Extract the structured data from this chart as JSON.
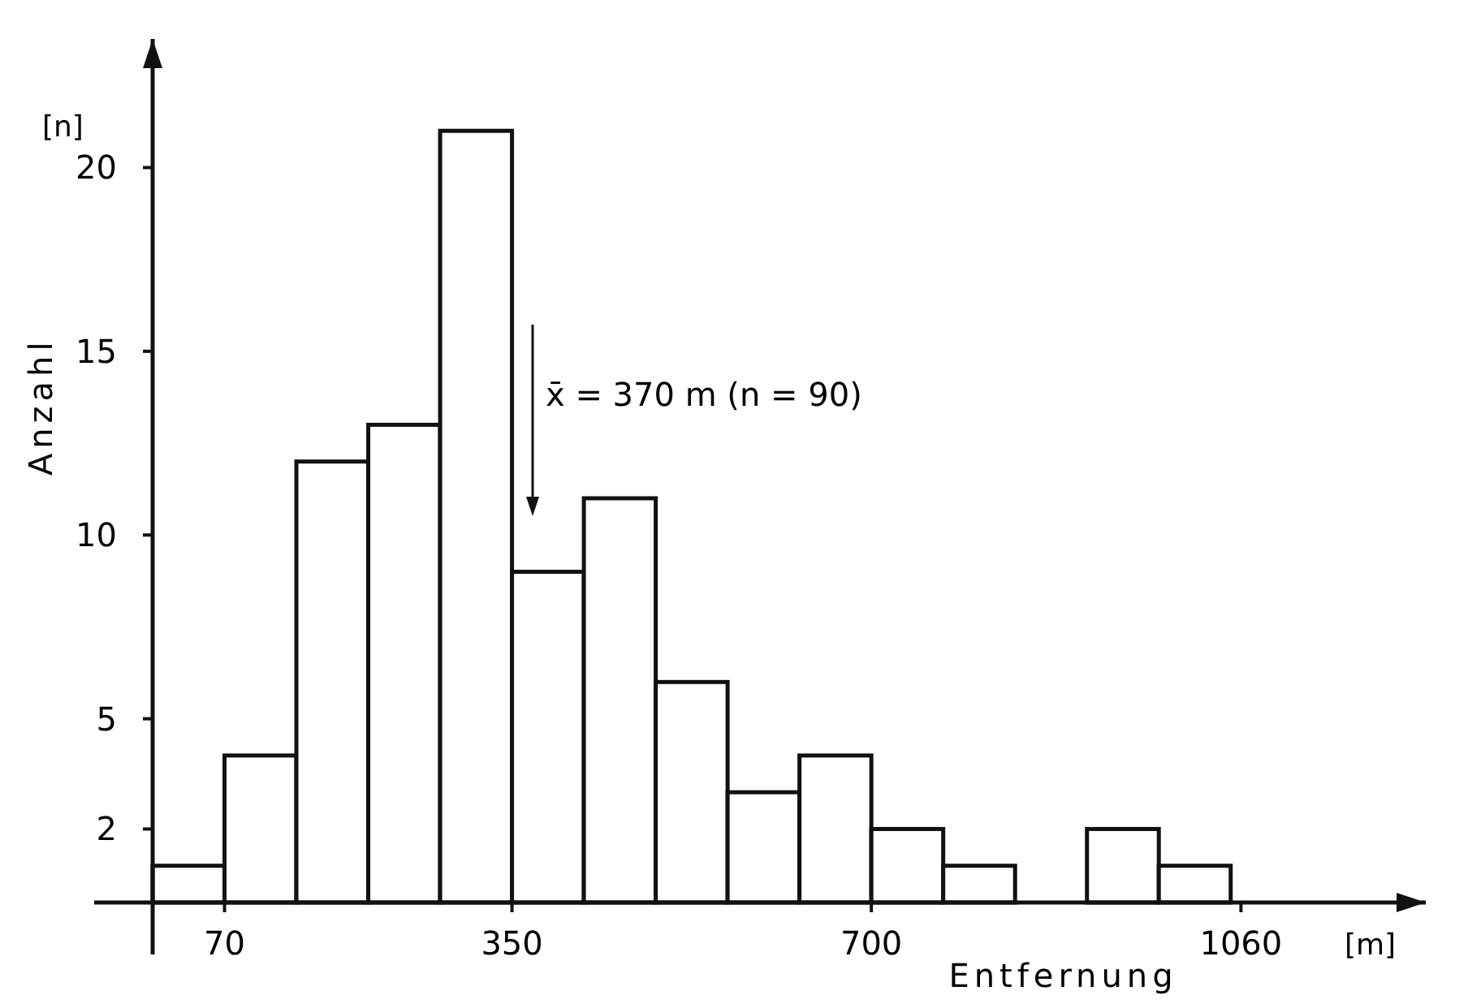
{
  "chart_data": {
    "type": "histogram",
    "ylabel": "Anzahl",
    "xlabel": "Entfernung",
    "bins": [
      0,
      70,
      140,
      210,
      280,
      350,
      420,
      490,
      560,
      630,
      700,
      770,
      840,
      910,
      980,
      1050
    ],
    "values": [
      1,
      4,
      12,
      13,
      21,
      9,
      11,
      6,
      3,
      4,
      2,
      1,
      0,
      2,
      1
    ],
    "color": "#ffffff",
    "xlim": [
      0,
      1240
    ],
    "xticks": [
      70,
      350,
      700,
      1060
    ],
    "ylim": [
      0,
      23.5
    ],
    "yticks": [
      2,
      5,
      10,
      15,
      20
    ],
    "annotations": [
      "[n]",
      "[m]",
      "x̄ = 370 m (n = 90)"
    ]
  }
}
